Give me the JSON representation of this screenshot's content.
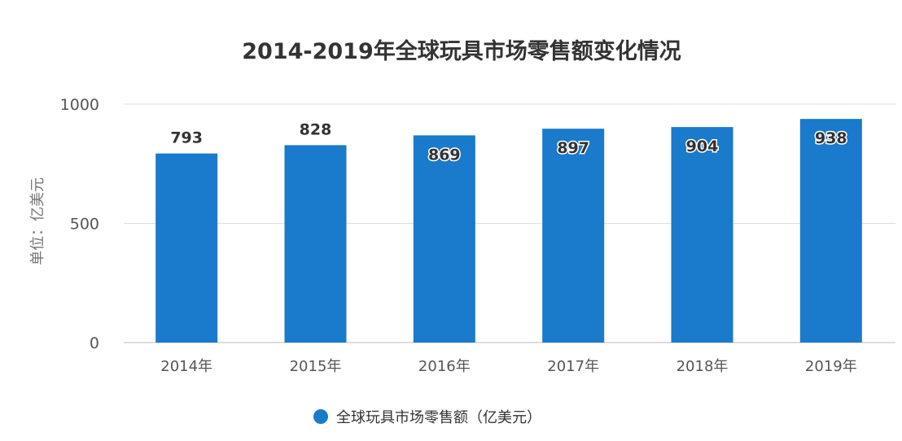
{
  "chart_data": {
    "type": "bar",
    "title": "2014-2019年全球玩具市场零售额变化情况",
    "ylabel": "单位：亿美元",
    "xlabel": "",
    "categories": [
      "2014年",
      "2015年",
      "2016年",
      "2017年",
      "2018年",
      "2019年"
    ],
    "series": [
      {
        "name": "全球玩具市场零售额（亿美元）",
        "values": [
          793,
          828,
          869,
          897,
          904,
          938
        ],
        "color": "#1a7acc"
      }
    ],
    "ylim": [
      0,
      1000
    ],
    "yticks": [
      0,
      500,
      1000
    ],
    "grid": true,
    "legend_position": "bottom-center"
  }
}
